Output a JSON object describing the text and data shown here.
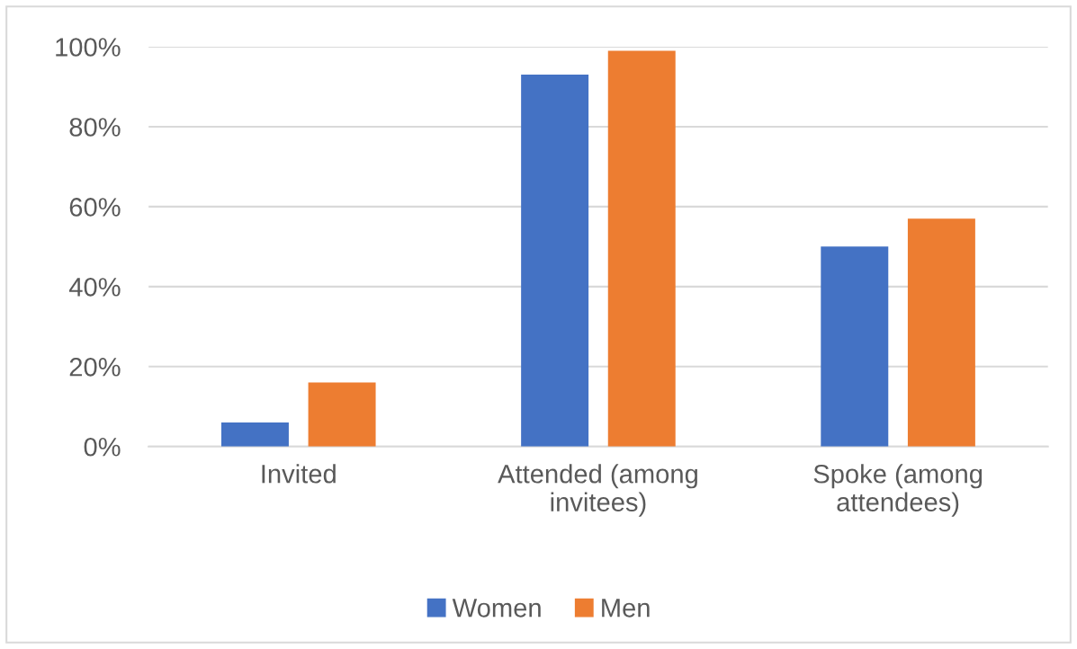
{
  "chart_data": {
    "type": "bar",
    "categories": [
      "Invited",
      "Attended (among\ninvitees)",
      "Spoke (among\nattendees)"
    ],
    "series": [
      {
        "name": "Women",
        "color": "#4472c4",
        "values": [
          6,
          93,
          50
        ]
      },
      {
        "name": "Men",
        "color": "#ed7d31",
        "values": [
          16,
          99,
          57
        ]
      }
    ],
    "ylim": [
      0,
      100
    ],
    "yticks": [
      {
        "value": 0,
        "label": "0%"
      },
      {
        "value": 20,
        "label": "20%"
      },
      {
        "value": 40,
        "label": "40%"
      },
      {
        "value": 60,
        "label": "60%"
      },
      {
        "value": 80,
        "label": "80%"
      },
      {
        "value": 100,
        "label": "100%"
      }
    ],
    "grid": "y",
    "legend": "bottom"
  }
}
